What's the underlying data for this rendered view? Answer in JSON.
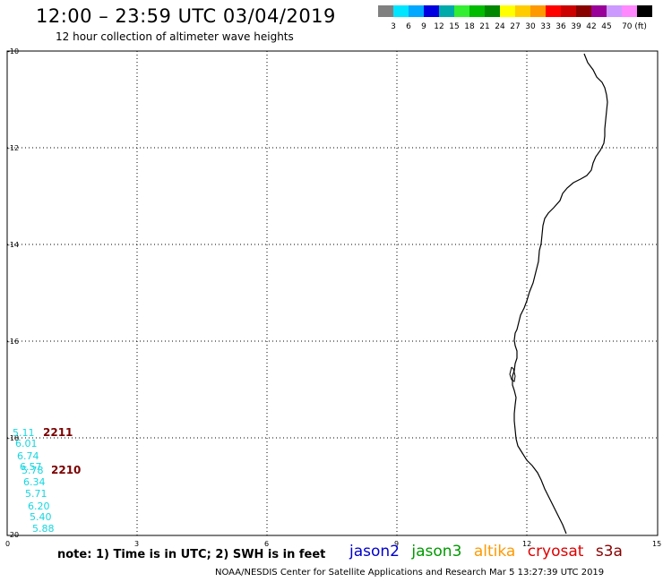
{
  "header": {
    "title": "12:00 – 23:59 UTC 03/04/2019",
    "subtitle": "12 hour collection of altimeter wave heights"
  },
  "color_scale": {
    "colors": [
      "#808080",
      "#00e5ff",
      "#00a8ff",
      "#0000e0",
      "#00aaaa",
      "#33ee33",
      "#00bb00",
      "#008800",
      "#ffff00",
      "#ffcc00",
      "#ff9900",
      "#ff0000",
      "#cc0000",
      "#880000",
      "#990099",
      "#cc99ff",
      "#ff88ff",
      "#000000"
    ],
    "labels": [
      "3",
      "6",
      "9",
      "12",
      "15",
      "18",
      "21",
      "24",
      "27",
      "30",
      "33",
      "36",
      "39",
      "42",
      "45",
      "70 (ft)"
    ]
  },
  "map": {
    "lat_labels": [
      "-10",
      "-12",
      "-14",
      "-16",
      "-18",
      "-20"
    ],
    "lon_labels": [
      "0",
      "3",
      "6",
      "9",
      "12",
      "15"
    ],
    "swh_values": [
      "5.11",
      "6.01",
      "6.74",
      "6.57",
      "5.78",
      "6.34",
      "5.71",
      "6.20",
      "5.40",
      "5.88"
    ],
    "pass_times": [
      "2211",
      "2210"
    ]
  },
  "footer": {
    "note": "note: 1) Time is in UTC; 2) SWH is in feet",
    "missions": [
      {
        "name": "jason2",
        "color": "#0000cc"
      },
      {
        "name": "jason3",
        "color": "#009900"
      },
      {
        "name": "altika",
        "color": "#ff9900"
      },
      {
        "name": "cryosat",
        "color": "#dd0000"
      },
      {
        "name": "s3a",
        "color": "#880000"
      }
    ],
    "credit": "NOAA/NESDIS Center for Satellite Applications and Research    Mar  5 13:27:39 UTC 2019"
  }
}
